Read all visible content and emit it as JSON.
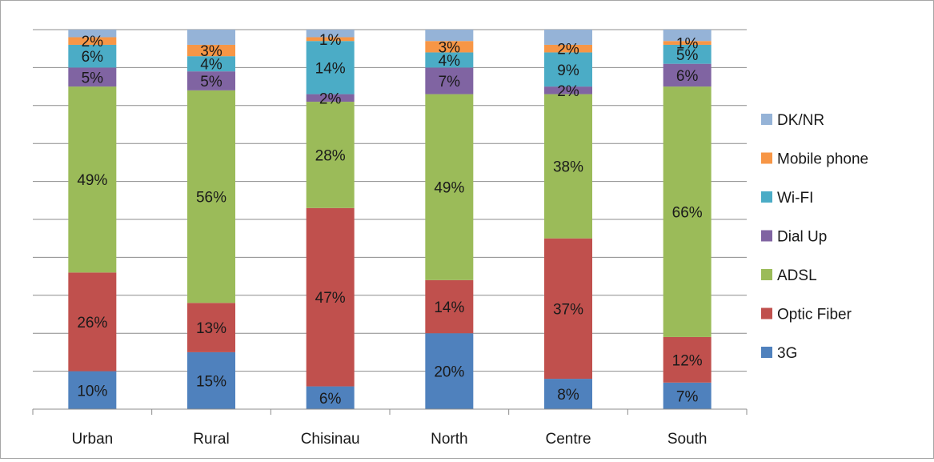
{
  "chart_data": {
    "type": "bar",
    "stacked": true,
    "percent_stacked": true,
    "title": "",
    "xlabel": "",
    "ylabel": "",
    "ylim": [
      0,
      100
    ],
    "grid": true,
    "legend_position": "right",
    "categories": [
      "Urban",
      "Rural",
      "Chisinau",
      "North",
      "Centre",
      "South"
    ],
    "series": [
      {
        "name": "3G",
        "color": "#4f81bd",
        "values": [
          10,
          15,
          6,
          20,
          8,
          7
        ],
        "labels": [
          "10%",
          "15%",
          "6%",
          "20%",
          "8%",
          "7%"
        ]
      },
      {
        "name": "Optic Fiber",
        "color": "#c0504d",
        "values": [
          26,
          13,
          47,
          14,
          37,
          12
        ],
        "labels": [
          "26%",
          "13%",
          "47%",
          "14%",
          "37%",
          "12%"
        ]
      },
      {
        "name": "ADSL",
        "color": "#9bbb59",
        "values": [
          49,
          56,
          28,
          49,
          38,
          66
        ],
        "labels": [
          "49%",
          "56%",
          "28%",
          "49%",
          "38%",
          "66%"
        ]
      },
      {
        "name": "Dial Up",
        "color": "#8064a2",
        "values": [
          5,
          5,
          2,
          7,
          2,
          6
        ],
        "labels": [
          "5%",
          "5%",
          "2%",
          "7%",
          "2%",
          "6%"
        ]
      },
      {
        "name": "Wi-FI",
        "color": "#4bacc6",
        "values": [
          6,
          4,
          14,
          4,
          9,
          5
        ],
        "labels": [
          "6%",
          "4%",
          "14%",
          "4%",
          "9%",
          "5%"
        ]
      },
      {
        "name": "Mobile phone",
        "color": "#f79646",
        "values": [
          2,
          3,
          1,
          3,
          2,
          1
        ],
        "labels": [
          "2%",
          "3%",
          "1%",
          "3%",
          "2%",
          "1%"
        ]
      },
      {
        "name": "DK/NR",
        "color": "#95b3d7",
        "values": [
          2,
          4,
          2,
          3,
          4,
          3
        ],
        "labels": [
          "",
          "",
          "",
          "",
          "",
          ""
        ]
      }
    ],
    "legend_order": [
      "DK/NR",
      "Mobile phone",
      "Wi-FI",
      "Dial Up",
      "ADSL",
      "Optic Fiber",
      "3G"
    ]
  }
}
